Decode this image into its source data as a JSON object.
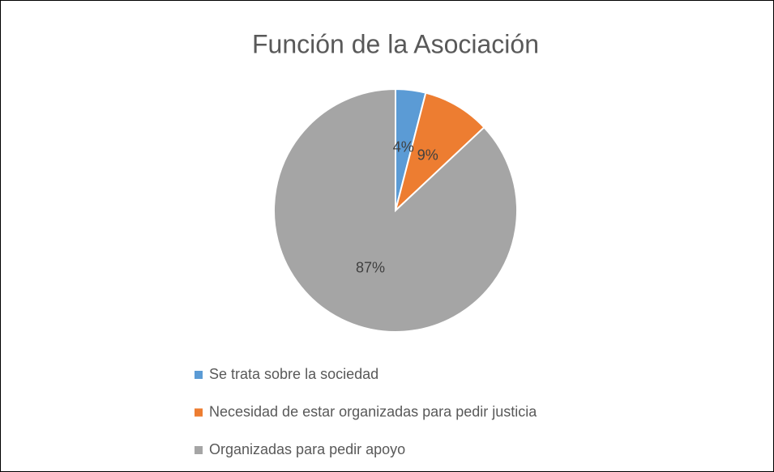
{
  "chart_data": {
    "type": "pie",
    "title": "Función de la Asociación",
    "categories": [
      "Se trata sobre la sociedad",
      "Necesidad de estar organizadas para pedir justicia",
      "Organizadas para pedir apoyo"
    ],
    "values": [
      4,
      9,
      87
    ],
    "value_labels": [
      "4%",
      "9%",
      "87%"
    ],
    "colors": [
      "#5b9bd5",
      "#ed7d31",
      "#a5a5a5"
    ],
    "legend": "bottom"
  }
}
